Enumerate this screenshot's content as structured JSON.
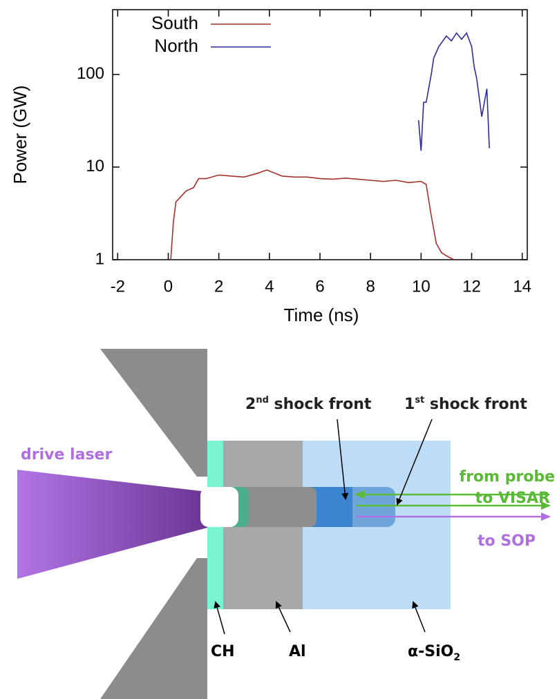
{
  "chart_data": {
    "type": "line",
    "xlabel": "Time (ns)",
    "ylabel": "Power (GW)",
    "log_y": true,
    "xlim": [
      -2.2,
      14.2
    ],
    "ylim": [
      1,
      500
    ],
    "xticks": [
      -2,
      0,
      2,
      4,
      6,
      8,
      10,
      12,
      14
    ],
    "yticks": [
      1,
      10,
      100
    ],
    "legend": "top-left",
    "series": [
      {
        "name": "South",
        "color": "#a3302b",
        "x": [
          0.1,
          0.2,
          0.3,
          0.5,
          0.7,
          1.0,
          1.2,
          1.5,
          2.0,
          2.5,
          3.0,
          3.5,
          3.9,
          4.5,
          5.0,
          5.5,
          6.0,
          6.5,
          7.0,
          7.5,
          8.0,
          8.5,
          9.0,
          9.5,
          10.0,
          10.2,
          10.4,
          10.6,
          10.8,
          11.0,
          11.3
        ],
        "values": [
          1,
          2.5,
          4.2,
          4.8,
          5.5,
          6,
          7.5,
          7.5,
          8.2,
          8,
          7.8,
          8.5,
          9.3,
          8,
          7.8,
          7.8,
          7.5,
          7.4,
          7.6,
          7.4,
          7.2,
          7,
          7.2,
          6.8,
          7,
          6.5,
          3,
          1.5,
          1.2,
          1.1,
          1.0
        ]
      },
      {
        "name": "North",
        "color": "#2b2b9c",
        "x": [
          9.9,
          10.0,
          10.1,
          10.2,
          10.4,
          10.5,
          10.7,
          11.0,
          11.2,
          11.4,
          11.6,
          11.8,
          12.0,
          12.1,
          12.2,
          12.4,
          12.6,
          12.7
        ],
        "values": [
          32,
          15,
          50,
          50,
          100,
          150,
          200,
          260,
          230,
          280,
          240,
          280,
          200,
          120,
          90,
          35,
          70,
          16
        ]
      }
    ]
  },
  "diagram": {
    "drive_laser": "drive laser",
    "second_shock": {
      "num": "2",
      "sup": "nd",
      "text": " shock front"
    },
    "first_shock": {
      "num": "1",
      "sup": "st",
      "text": " shock front"
    },
    "probe_line1": "from probe",
    "probe_line2": "to VISAR",
    "sop": "to SOP",
    "ch": "CH",
    "al": "Al",
    "sio2": {
      "text": "α-SiO",
      "sub": "2"
    }
  }
}
